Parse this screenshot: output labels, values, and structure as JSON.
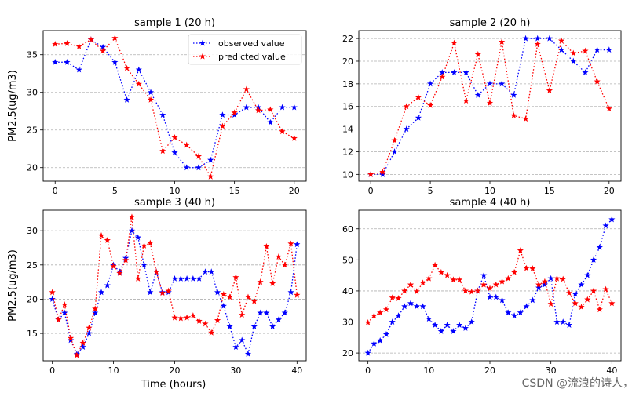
{
  "figure": {
    "ylabel_left": "PM2.5(ug/m3)",
    "xlabel_bottom": "Time (hours)",
    "watermark": "CSDN @流浪的诗人，"
  },
  "chart_data": [
    {
      "type": "line",
      "title": "sample 1 (20 h)",
      "xlabel": "",
      "ylabel": "PM2.5(ug/m3)",
      "xlim": [
        -1,
        21
      ],
      "ylim": [
        18.2,
        38.2
      ],
      "xticks": [
        0,
        5,
        10,
        15,
        20
      ],
      "yticks": [
        20,
        25,
        30,
        35
      ],
      "grid": "y-dashed",
      "legend": "top-right",
      "x": [
        0,
        1,
        2,
        3,
        4,
        5,
        6,
        7,
        8,
        9,
        10,
        11,
        12,
        13,
        14,
        15,
        16,
        17,
        18,
        19,
        20
      ],
      "series": [
        {
          "name": "observed value",
          "color": "#0000ff",
          "values": [
            34,
            34,
            33,
            37,
            36,
            34,
            29,
            33,
            30,
            27,
            22,
            20,
            20,
            21,
            27,
            27,
            28,
            28,
            26,
            28,
            28
          ]
        },
        {
          "name": "predicted value",
          "color": "#ff0000",
          "values": [
            36.4,
            36.5,
            36.1,
            37,
            35.5,
            37.2,
            33.2,
            31.1,
            29,
            22.2,
            24,
            23,
            21.5,
            18.8,
            25.5,
            27.3,
            30.4,
            27.6,
            27.7,
            24.8,
            23.9
          ]
        }
      ]
    },
    {
      "type": "line",
      "title": "sample 2 (20 h)",
      "xlabel": "",
      "ylabel": "",
      "xlim": [
        -1,
        21
      ],
      "ylim": [
        9.4,
        22.7
      ],
      "xticks": [
        0,
        5,
        10,
        15,
        20
      ],
      "yticks": [
        10,
        12,
        14,
        16,
        18,
        20,
        22
      ],
      "grid": "y-dashed",
      "x": [
        0,
        1,
        2,
        3,
        4,
        5,
        6,
        7,
        8,
        9,
        10,
        11,
        12,
        13,
        14,
        15,
        16,
        17,
        18,
        19,
        20
      ],
      "series": [
        {
          "name": "observed value",
          "color": "#0000ff",
          "values": [
            10,
            10,
            12,
            14,
            15,
            18,
            19,
            19,
            19,
            17,
            18,
            18,
            17,
            22,
            22,
            22,
            21,
            20,
            19,
            21,
            21
          ]
        },
        {
          "name": "predicted value",
          "color": "#ff0000",
          "values": [
            10,
            10.2,
            13,
            16,
            16.8,
            16.1,
            18.6,
            21.6,
            16.5,
            20.6,
            16.3,
            21.7,
            15.2,
            14.9,
            21.5,
            17.4,
            21.8,
            20.7,
            20.9,
            18.2,
            15.8
          ]
        }
      ]
    },
    {
      "type": "line",
      "title": "sample 3 (40 h)",
      "xlabel": "Time (hours)",
      "ylabel": "PM2.5(ug/m3)",
      "xlim": [
        -1.5,
        41.5
      ],
      "ylim": [
        11,
        33
      ],
      "xticks": [
        0,
        10,
        20,
        30,
        40
      ],
      "yticks": [
        15,
        20,
        25,
        30
      ],
      "grid": "y-dashed",
      "x": [
        0,
        1,
        2,
        3,
        4,
        5,
        6,
        7,
        8,
        9,
        10,
        11,
        12,
        13,
        14,
        15,
        16,
        17,
        18,
        19,
        20,
        21,
        22,
        23,
        24,
        25,
        26,
        27,
        28,
        29,
        30,
        31,
        32,
        33,
        34,
        35,
        36,
        37,
        38,
        39,
        40
      ],
      "series": [
        {
          "name": "observed value",
          "color": "#0000ff",
          "values": [
            20,
            17,
            18,
            14,
            12,
            13,
            15,
            18,
            21,
            22,
            25,
            24,
            26,
            30,
            29,
            25,
            21,
            24,
            21,
            21,
            23,
            23,
            23,
            23,
            23,
            24,
            24,
            21,
            19,
            16,
            13,
            14,
            12,
            16,
            18,
            18,
            16,
            17,
            18,
            21,
            28
          ]
        },
        {
          "name": "predicted value",
          "color": "#ff0000",
          "values": [
            21,
            17,
            19.2,
            14.3,
            11.8,
            13.6,
            15.8,
            18.6,
            29.3,
            28.6,
            24.8,
            23.8,
            25.7,
            32,
            23,
            27.8,
            28.2,
            24,
            20.9,
            21.2,
            17.3,
            17.2,
            17.3,
            17.6,
            16.8,
            16.4,
            15.1,
            16.9,
            20.7,
            20.3,
            23.2,
            17.7,
            20.3,
            19.7,
            22.5,
            27.7,
            22.3,
            26.2,
            25,
            28.1,
            20.6
          ]
        }
      ]
    },
    {
      "type": "line",
      "title": "sample 4 (40 h)",
      "xlabel": "",
      "ylabel": "",
      "xlim": [
        -1.5,
        41.5
      ],
      "ylim": [
        17.5,
        66
      ],
      "xticks": [
        0,
        10,
        20,
        30,
        40
      ],
      "yticks": [
        20,
        30,
        40,
        50,
        60
      ],
      "grid": "y-dashed",
      "x": [
        0,
        1,
        2,
        3,
        4,
        5,
        6,
        7,
        8,
        9,
        10,
        11,
        12,
        13,
        14,
        15,
        16,
        17,
        18,
        19,
        20,
        21,
        22,
        23,
        24,
        25,
        26,
        27,
        28,
        29,
        30,
        31,
        32,
        33,
        34,
        35,
        36,
        37,
        38,
        39,
        40
      ],
      "series": [
        {
          "name": "observed value",
          "color": "#0000ff",
          "values": [
            20,
            23,
            24,
            26,
            30,
            32,
            35,
            36,
            35,
            35,
            31,
            29,
            27,
            29,
            27,
            29,
            28,
            30,
            40,
            45,
            38,
            38,
            37,
            33,
            32,
            33,
            35,
            37,
            41,
            42,
            44,
            30,
            30,
            29,
            39,
            42,
            45,
            50,
            54,
            61,
            63
          ]
        },
        {
          "name": "predicted value",
          "color": "#ff0000",
          "values": [
            29.8,
            32,
            33,
            34,
            37.8,
            37.6,
            40,
            42,
            39.8,
            42.6,
            44,
            48.3,
            46,
            45,
            43.6,
            43.6,
            40,
            39.7,
            40,
            42,
            40.8,
            42,
            43,
            44,
            46,
            53,
            47.3,
            47.2,
            42,
            43,
            35.8,
            44,
            43.8,
            39.3,
            36,
            34.8,
            37.2,
            40,
            34,
            40.5,
            36
          ]
        }
      ]
    }
  ]
}
